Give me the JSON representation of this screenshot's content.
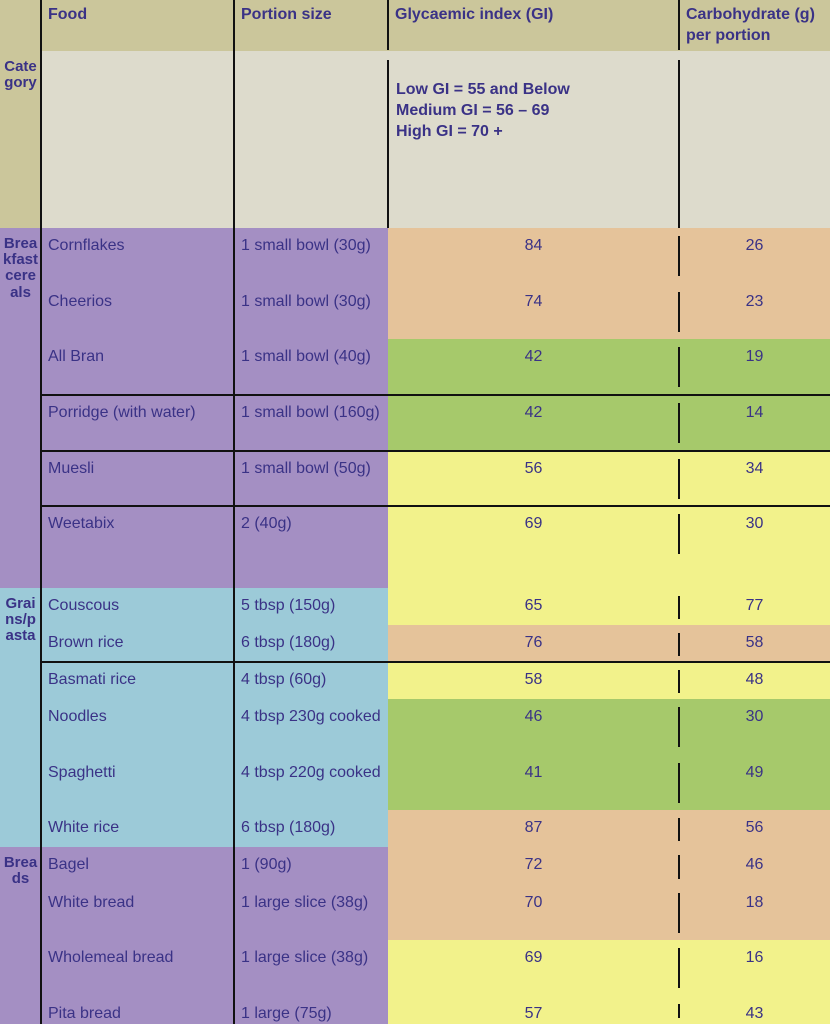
{
  "colors": {
    "header": "#cbc69b",
    "category_row": "#dddbcc",
    "purple": "#a48fc3",
    "blue": "#9ccad8",
    "high_gi": "#e5c39a",
    "medium_gi": "#f2f28b",
    "low_gi": "#a6c96b"
  },
  "header": {
    "food": "Food",
    "portion": "Portion size",
    "gi": "Glycaemic index (GI)",
    "carb": "Carbohydrate (g) per portion"
  },
  "category_row": {
    "label": "Category",
    "legend_low": "Low GI = 55 and Below",
    "legend_medium": "Medium GI = 56 – 69",
    "legend_high": "High GI = 70 +"
  },
  "groups": [
    {
      "label": "Breakfast cereals",
      "color": "purple"
    },
    {
      "label": "Grains/pasta",
      "color": "blue"
    },
    {
      "label": "Breads",
      "color": "purple"
    }
  ],
  "rows": [
    {
      "food": "Cornflakes",
      "portion": "1 small bowl (30g)",
      "gi": "84",
      "carb": "26",
      "level": "high"
    },
    {
      "food": "Cheerios",
      "portion": "1 small bowl (30g)",
      "gi": "74",
      "carb": "23",
      "level": "high"
    },
    {
      "food": "All Bran",
      "portion": "1 small bowl (40g)",
      "gi": "42",
      "carb": "19",
      "level": "low"
    },
    {
      "food": "Porridge (with water)",
      "portion": "1 small bowl (160g)",
      "gi": "42",
      "carb": "14",
      "level": "low"
    },
    {
      "food": "Muesli",
      "portion": "1 small bowl (50g)",
      "gi": "56",
      "carb": "34",
      "level": "medium"
    },
    {
      "food": "Weetabix",
      "portion": "2 (40g)",
      "gi": "69",
      "carb": "30",
      "level": "medium"
    },
    {
      "food": "Couscous",
      "portion": "5 tbsp (150g)",
      "gi": "65",
      "carb": "77",
      "level": "medium"
    },
    {
      "food": "Brown rice",
      "portion": "6 tbsp (180g)",
      "gi": "76",
      "carb": "58",
      "level": "high"
    },
    {
      "food": "Basmati rice",
      "portion": "4 tbsp (60g)",
      "gi": "58",
      "carb": "48",
      "level": "medium"
    },
    {
      "food": "Noodles",
      "portion": "4 tbsp 230g cooked",
      "gi": "46",
      "carb": "30",
      "level": "low"
    },
    {
      "food": "Spaghetti",
      "portion": "4 tbsp 220g cooked",
      "gi": "41",
      "carb": "49",
      "level": "low"
    },
    {
      "food": "White rice",
      "portion": "6 tbsp (180g)",
      "gi": "87",
      "carb": "56",
      "level": "high"
    },
    {
      "food": "Bagel",
      "portion": "1 (90g)",
      "gi": "72",
      "carb": "46",
      "level": "high"
    },
    {
      "food": "White bread",
      "portion": "1 large slice (38g)",
      "gi": "70",
      "carb": "18",
      "level": "high"
    },
    {
      "food": "Wholemeal bread",
      "portion": "1 large slice (38g)",
      "gi": "69",
      "carb": "16",
      "level": "medium"
    },
    {
      "food": "Pita bread",
      "portion": "1 large (75g)",
      "gi": "57",
      "carb": "43",
      "level": "medium"
    }
  ]
}
